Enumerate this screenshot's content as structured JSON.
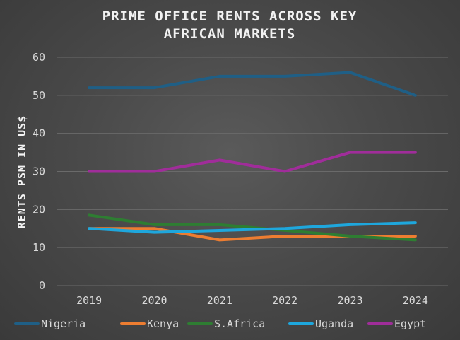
{
  "chart_data": {
    "type": "line",
    "title_lines": [
      "PRIME OFFICE RENTS ACROSS KEY",
      "AFRICAN MARKETS"
    ],
    "ylabel": "RENTS PSM  IN US$",
    "xlabel": "",
    "categories": [
      "2019",
      "2020",
      "2021",
      "2022",
      "2023",
      "2024"
    ],
    "ylim": [
      0,
      60
    ],
    "yticks": [
      0,
      10,
      20,
      30,
      40,
      50,
      60
    ],
    "grid": true,
    "legend_position": "bottom",
    "series": [
      {
        "name": "Nigeria",
        "color": "#1f5f86",
        "values": [
          52,
          52,
          55,
          55,
          56,
          50
        ]
      },
      {
        "name": "Kenya",
        "color": "#ed7d31",
        "values": [
          15,
          15,
          12,
          13,
          13,
          13
        ]
      },
      {
        "name": "S.Africa",
        "color": "#2e7d32",
        "values": [
          18.5,
          16,
          16,
          14.5,
          13,
          12
        ]
      },
      {
        "name": "Uganda",
        "color": "#1ea7dd",
        "values": [
          15,
          14,
          14.5,
          15,
          16,
          16.5
        ]
      },
      {
        "name": "Egypt",
        "color": "#a02d9a",
        "values": [
          30,
          30,
          33,
          30,
          35,
          35
        ]
      }
    ]
  }
}
